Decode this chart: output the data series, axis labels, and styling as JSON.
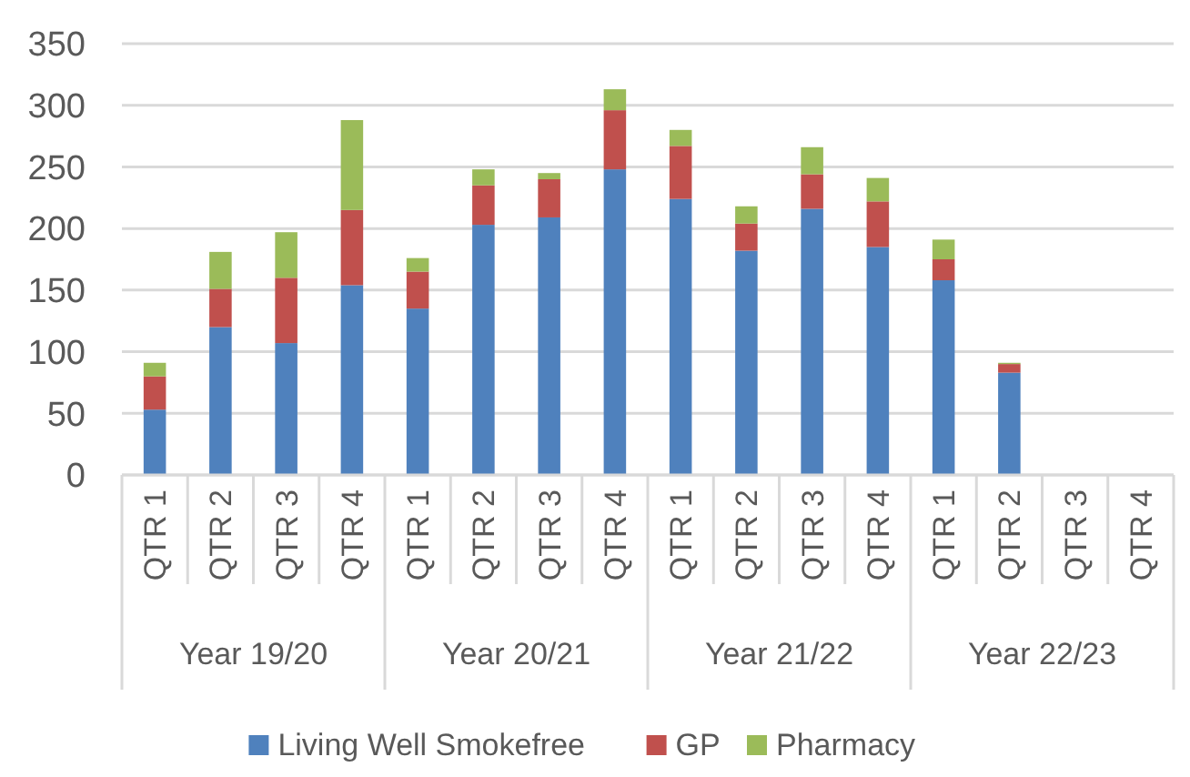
{
  "chart_data": {
    "type": "bar",
    "stacked": true,
    "categories": [
      "QTR 1",
      "QTR 2",
      "QTR 3",
      "QTR 4",
      "QTR 1",
      "QTR 2",
      "QTR 3",
      "QTR 4",
      "QTR 1",
      "QTR 2",
      "QTR 3",
      "QTR 4",
      "QTR 1",
      "QTR 2",
      "QTR 3",
      "QTR 4"
    ],
    "series": [
      {
        "name": "Living Well Smokefree",
        "color": "#4f81bd",
        "values": [
          53,
          120,
          107,
          154,
          135,
          203,
          209,
          248,
          224,
          182,
          216,
          185,
          158,
          83,
          null,
          null
        ]
      },
      {
        "name": "GP",
        "color": "#c0504d",
        "values": [
          27,
          31,
          53,
          61,
          30,
          32,
          31,
          48,
          43,
          22,
          28,
          37,
          17,
          7,
          null,
          null
        ]
      },
      {
        "name": "Pharmacy",
        "color": "#9bbb59",
        "values": [
          11,
          30,
          37,
          73,
          11,
          13,
          5,
          17,
          13,
          14,
          22,
          19,
          16,
          1,
          null,
          null
        ]
      }
    ],
    "annotations": [
      "Year 19/20",
      "Year 20/21",
      "Year 21/22",
      "Year 22/23"
    ],
    "ylim": [
      0,
      350
    ],
    "yticks": [
      0,
      50,
      100,
      150,
      200,
      250,
      300,
      350
    ],
    "grid": "y",
    "legend": "bottom"
  }
}
